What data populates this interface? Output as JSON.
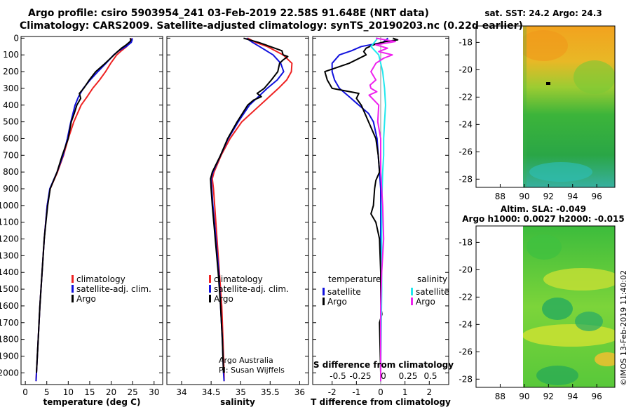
{
  "header": {
    "line1": "Argo profile: csiro 5903954_241 03-Feb-2019 22.58S 91.648E (NRT data)",
    "line2": "Climatology: CARS2009. Satellite-adjusted climatology: synTS_20190203.nc (0.22d earlier)"
  },
  "colors": {
    "climatology": "#ee2222",
    "satellite": "#1111dd",
    "argo": "#000000",
    "sal_satellite": "#22e8ee",
    "sal_argo": "#ee22ee"
  },
  "credits": {
    "org": "Argo Australia",
    "pi": "PI: Susan Wijffels"
  },
  "stamp": "©IMOS 13-Feb-2019 11:40:02",
  "chart_data": [
    {
      "type": "line",
      "name": "temperature",
      "xlabel": "temperature (deg C)",
      "ylabel": "depth",
      "xlim": [
        -1,
        32
      ],
      "ylim": [
        2070,
        -10
      ],
      "xticks": [
        0,
        5,
        10,
        15,
        20,
        25,
        30
      ],
      "yticks": [
        0,
        100,
        200,
        300,
        400,
        500,
        600,
        700,
        800,
        900,
        1000,
        1100,
        1200,
        1300,
        1400,
        1500,
        1600,
        1700,
        1800,
        1900,
        2000
      ],
      "legend": [
        "climatology",
        "satellite-adj. clim.",
        "Argo"
      ],
      "series": [
        {
          "name": "climatology",
          "depth": [
            0,
            10,
            25,
            50,
            75,
            100,
            150,
            200,
            250,
            300,
            350,
            400,
            500,
            600,
            700,
            800,
            900,
            1000,
            1200,
            1400,
            1600,
            1800,
            2000,
            2050
          ],
          "values": [
            24.6,
            24.6,
            24.5,
            23.6,
            22.4,
            21.3,
            19.9,
            18.7,
            17.3,
            15.7,
            14.4,
            13.0,
            11.3,
            10.0,
            8.9,
            7.5,
            5.8,
            5.1,
            4.4,
            3.9,
            3.4,
            3.0,
            2.6,
            2.5
          ]
        },
        {
          "name": "satellite-adj. clim.",
          "depth": [
            0,
            10,
            25,
            50,
            75,
            100,
            150,
            200,
            250,
            300,
            350,
            400,
            500,
            600,
            700,
            800,
            900,
            1000,
            1200,
            1400,
            1600,
            1800,
            2000,
            2050
          ],
          "values": [
            24.9,
            24.9,
            24.7,
            23.5,
            21.8,
            20.6,
            18.8,
            16.9,
            15.1,
            13.5,
            12.4,
            11.6,
            10.6,
            9.8,
            8.8,
            7.4,
            5.7,
            5.1,
            4.4,
            3.9,
            3.4,
            3.0,
            2.6,
            2.5
          ]
        },
        {
          "name": "Argo",
          "depth": [
            0,
            10,
            20,
            40,
            60,
            80,
            100,
            150,
            200,
            250,
            300,
            330,
            360,
            400,
            450,
            500,
            600,
            700,
            800,
            900,
            1000,
            1100,
            1200,
            1400,
            1600,
            1800,
            2000
          ],
          "values": [
            24.4,
            24.6,
            24.4,
            23.5,
            22.4,
            21.5,
            20.7,
            18.6,
            16.4,
            14.9,
            13.6,
            12.6,
            12.9,
            12.0,
            11.4,
            10.7,
            10.0,
            8.6,
            7.4,
            5.8,
            5.2,
            4.8,
            4.4,
            3.9,
            3.4,
            3.0,
            2.6
          ]
        }
      ]
    },
    {
      "type": "line",
      "name": "salinity",
      "xlabel": "salinity",
      "ylabel": "depth",
      "xlim": [
        33.75,
        36.15
      ],
      "ylim": [
        2070,
        -10
      ],
      "xticks": [
        34,
        34.5,
        35,
        35.5,
        36
      ],
      "legend": [
        "climatology",
        "satellite-adj. clim.",
        "Argo"
      ],
      "series": [
        {
          "name": "climatology",
          "depth": [
            0,
            25,
            50,
            100,
            150,
            200,
            250,
            300,
            400,
            500,
            600,
            700,
            800,
            840,
            900,
            1000,
            1200,
            1400,
            1600,
            1800,
            2000,
            2050
          ],
          "values": [
            35.12,
            35.25,
            35.45,
            35.72,
            35.87,
            35.86,
            35.78,
            35.64,
            35.33,
            35.02,
            34.82,
            34.67,
            34.55,
            34.52,
            34.54,
            34.56,
            34.6,
            34.64,
            34.68,
            34.7,
            34.72,
            34.72
          ]
        },
        {
          "name": "satellite-adj. clim.",
          "depth": [
            0,
            25,
            50,
            100,
            150,
            200,
            250,
            300,
            350,
            400,
            500,
            600,
            700,
            800,
            840,
            900,
            1000,
            1200,
            1400,
            1600,
            1800,
            2000,
            2050
          ],
          "values": [
            35.1,
            35.2,
            35.32,
            35.55,
            35.68,
            35.73,
            35.62,
            35.45,
            35.3,
            35.15,
            34.96,
            34.79,
            34.66,
            34.53,
            34.5,
            34.51,
            34.53,
            34.58,
            34.63,
            34.66,
            34.69,
            34.71,
            34.72
          ]
        },
        {
          "name": "Argo",
          "depth": [
            0,
            10,
            25,
            50,
            75,
            100,
            110,
            130,
            150,
            200,
            250,
            300,
            330,
            350,
            370,
            400,
            500,
            600,
            700,
            800,
            840,
            900,
            1000,
            1200,
            1400,
            1600,
            1800,
            2000
          ],
          "values": [
            35.05,
            35.15,
            35.3,
            35.5,
            35.7,
            35.72,
            35.8,
            35.72,
            35.66,
            35.63,
            35.52,
            35.4,
            35.28,
            35.35,
            35.22,
            35.12,
            34.94,
            34.78,
            34.66,
            34.52,
            34.49,
            34.5,
            34.52,
            34.57,
            34.62,
            34.66,
            34.69,
            34.71
          ]
        }
      ]
    },
    {
      "type": "line",
      "name": "difference from climatology",
      "xlabel": "T difference from climatology",
      "top_xlabel": "S difference from climatology",
      "xlim": [
        -2.8,
        2.8
      ],
      "ylim": [
        2070,
        -10
      ],
      "xticks": [
        -2,
        -1,
        0,
        1,
        2
      ],
      "top_xticks": [
        -0.5,
        -0.25,
        0,
        0.25,
        0.5
      ],
      "legend_temperature_title": "temperature",
      "legend_salinity_title": "salinity",
      "legend_temperature": [
        "satellite",
        "Argo"
      ],
      "legend_salinity": [
        "satellite",
        "Argo"
      ],
      "series": [
        {
          "name": "T satellite",
          "depth": [
            0,
            25,
            50,
            75,
            100,
            150,
            200,
            250,
            300,
            350,
            400,
            450,
            500,
            600,
            700,
            800,
            900,
            1000,
            1200,
            1500,
            2000,
            2050
          ],
          "values": [
            0.3,
            0.1,
            -0.8,
            -1.2,
            -1.7,
            -2.0,
            -2.0,
            -1.9,
            -1.7,
            -1.3,
            -0.9,
            -0.5,
            -0.3,
            -0.15,
            -0.1,
            -0.05,
            0,
            0,
            0,
            0,
            0,
            0
          ]
        },
        {
          "name": "T Argo",
          "depth": [
            0,
            10,
            20,
            40,
            60,
            80,
            100,
            150,
            200,
            250,
            300,
            330,
            360,
            400,
            500,
            600,
            700,
            800,
            850,
            900,
            1000,
            1050,
            1100,
            1200,
            1400,
            1600,
            1650,
            1700,
            2000,
            2050
          ],
          "values": [
            0.5,
            0.7,
            0.2,
            -0.3,
            -0.6,
            -0.7,
            -0.6,
            -1.3,
            -2.3,
            -2.2,
            -2.0,
            -0.9,
            -1.0,
            -0.8,
            -0.5,
            -0.2,
            -0.1,
            -0.05,
            -0.2,
            -0.25,
            -0.3,
            -0.4,
            -0.2,
            -0.05,
            0,
            0,
            0.05,
            -0.05,
            0,
            0
          ]
        },
        {
          "name": "S satellite",
          "depth": [
            0,
            50,
            100,
            150,
            200,
            300,
            400,
            500,
            600,
            700,
            800,
            1000,
            1500,
            2000,
            2050
          ],
          "values": [
            -0.03,
            -0.1,
            -0.02,
            0.0,
            0.02,
            0.04,
            0.05,
            0.04,
            0.03,
            0.03,
            0.02,
            0.01,
            0.01,
            0.0,
            0.0
          ]
        },
        {
          "name": "S Argo",
          "depth": [
            0,
            20,
            40,
            60,
            80,
            100,
            120,
            150,
            200,
            250,
            280,
            300,
            320,
            340,
            400,
            500,
            600,
            800,
            1000,
            1200,
            1400,
            1600,
            1800,
            2000,
            2050
          ],
          "values": [
            -0.05,
            0.15,
            -0.05,
            0.07,
            -0.02,
            0.12,
            0.03,
            -0.05,
            -0.1,
            -0.05,
            -0.11,
            -0.1,
            -0.04,
            -0.12,
            -0.02,
            -0.03,
            0.0,
            0.0,
            0.02,
            0.03,
            0.01,
            0.0,
            0.0,
            0.0,
            0.0
          ]
        }
      ]
    },
    {
      "type": "heatmap",
      "name": "sat-sst",
      "title": "sat. SST: 24.2 Argo: 24.3",
      "xlim": [
        86,
        97.5
      ],
      "ylim": [
        -28.6,
        -16.8
      ],
      "xticks": [
        88,
        90,
        92,
        94,
        96
      ],
      "yticks": [
        -18,
        -20,
        -22,
        -24,
        -26,
        -28
      ]
    },
    {
      "type": "heatmap",
      "name": "altimetry",
      "title": "Altim. SLA: -0.049",
      "subtitle": "Argo h1000: 0.0027 h2000: -0.015",
      "xlim": [
        86,
        97.5
      ],
      "ylim": [
        -28.6,
        -16.8
      ],
      "xticks": [
        88,
        90,
        92,
        94,
        96
      ],
      "yticks": [
        -18,
        -20,
        -22,
        -24,
        -26,
        -28
      ]
    }
  ]
}
